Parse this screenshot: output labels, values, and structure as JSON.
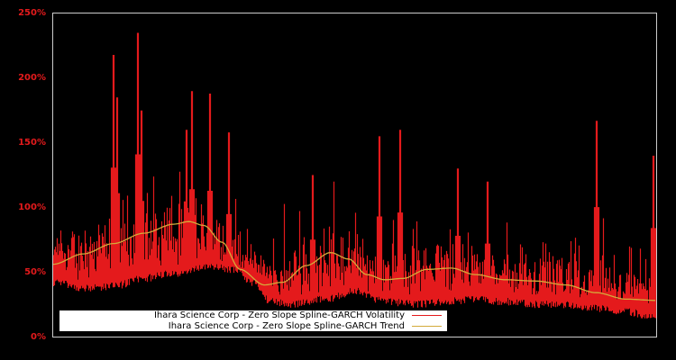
{
  "chart_data": {
    "type": "line",
    "title": "",
    "xlabel": "",
    "ylabel": "",
    "ylim": [
      0,
      250
    ],
    "y_tick_labels": [
      "250%",
      "200%",
      "150%",
      "100%",
      "50%",
      "0%"
    ],
    "y_ticks": [
      250,
      200,
      150,
      100,
      50,
      0
    ],
    "grid": false,
    "legend_position": "lower-left",
    "series": [
      {
        "name": "Ihara Science Corp - Zero Slope Spline-GARCH Volatility",
        "color": "#e41a1c",
        "baseline_profile_x": [
          0,
          0.05,
          0.1,
          0.15,
          0.2,
          0.25,
          0.3,
          0.33,
          0.36,
          0.4,
          0.45,
          0.5,
          0.55,
          0.6,
          0.65,
          0.7,
          0.75,
          0.8,
          0.85,
          0.9,
          0.95,
          1.0
        ],
        "baseline_profile_y": [
          45,
          40,
          42,
          48,
          52,
          57,
          55,
          45,
          30,
          28,
          32,
          38,
          30,
          28,
          30,
          32,
          30,
          28,
          28,
          25,
          22,
          18
        ],
        "notable_spikes": [
          {
            "x": 0.1,
            "y": 218
          },
          {
            "x": 0.105,
            "y": 185
          },
          {
            "x": 0.14,
            "y": 235
          },
          {
            "x": 0.145,
            "y": 175
          },
          {
            "x": 0.22,
            "y": 160
          },
          {
            "x": 0.23,
            "y": 190
          },
          {
            "x": 0.26,
            "y": 188
          },
          {
            "x": 0.29,
            "y": 158
          },
          {
            "x": 0.43,
            "y": 125
          },
          {
            "x": 0.54,
            "y": 155
          },
          {
            "x": 0.575,
            "y": 160
          },
          {
            "x": 0.67,
            "y": 130
          },
          {
            "x": 0.72,
            "y": 120
          },
          {
            "x": 0.9,
            "y": 167
          },
          {
            "x": 0.995,
            "y": 140
          }
        ]
      },
      {
        "name": "Ihara Science Corp - Zero Slope Spline-GARCH Trend",
        "color": "#d4aa3a",
        "x": [
          0,
          0.05,
          0.1,
          0.15,
          0.2,
          0.225,
          0.25,
          0.28,
          0.31,
          0.35,
          0.38,
          0.42,
          0.46,
          0.49,
          0.52,
          0.55,
          0.58,
          0.62,
          0.66,
          0.7,
          0.75,
          0.8,
          0.85,
          0.9,
          0.95,
          1.0
        ],
        "y": [
          56,
          64,
          72,
          80,
          87,
          89,
          86,
          73,
          52,
          40,
          42,
          55,
          65,
          60,
          48,
          44,
          45,
          52,
          53,
          48,
          44,
          43,
          40,
          34,
          29,
          28
        ]
      }
    ]
  },
  "legend": {
    "items": [
      {
        "label": "Ihara Science Corp - Zero Slope Spline-GARCH Volatility",
        "color": "#e41a1c"
      },
      {
        "label": "Ihara Science Corp - Zero Slope Spline-GARCH Trend",
        "color": "#d4aa3a"
      }
    ]
  },
  "axes": {
    "y_labels": [
      "250%",
      "200%",
      "150%",
      "100%",
      "50%",
      "0%"
    ]
  }
}
